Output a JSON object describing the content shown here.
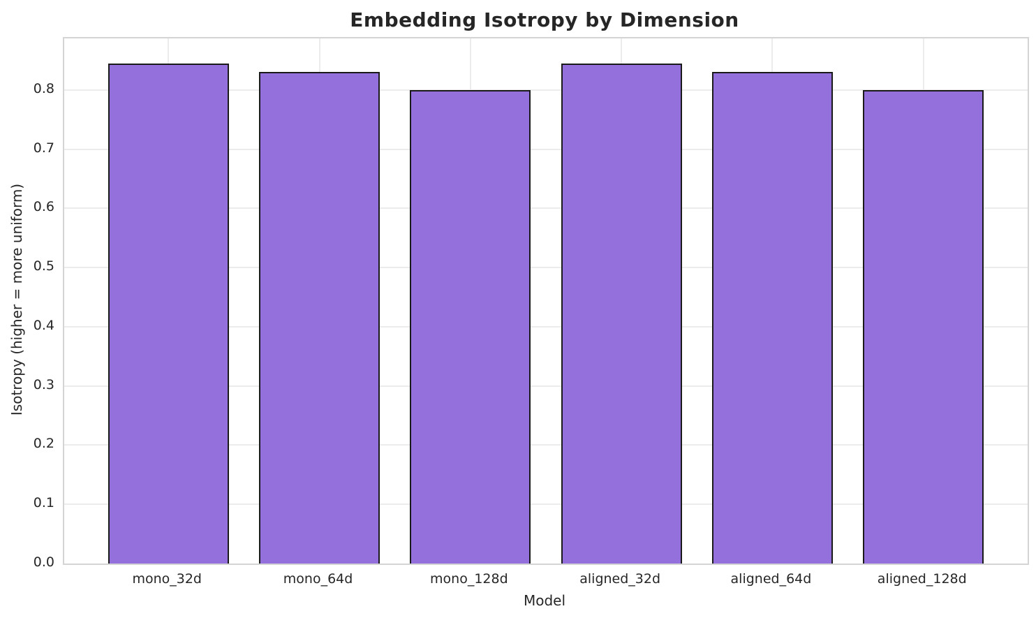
{
  "chart_data": {
    "type": "bar",
    "title": "Embedding Isotropy by Dimension",
    "xlabel": "Model",
    "ylabel": "Isotropy (higher = more uniform)",
    "categories": [
      "mono_32d",
      "mono_64d",
      "mono_128d",
      "aligned_32d",
      "aligned_64d",
      "aligned_128d"
    ],
    "values": [
      0.845,
      0.83,
      0.8,
      0.845,
      0.83,
      0.8
    ],
    "yticks": [
      0.0,
      0.1,
      0.2,
      0.3,
      0.4,
      0.5,
      0.6,
      0.7,
      0.8
    ],
    "ylim": [
      0,
      0.887
    ],
    "grid": true,
    "legend": null,
    "colors": {
      "bar_fill": "#9370DB",
      "bar_edge": "#1a1a1a",
      "grid_line": "#ececec",
      "spine": "#d4d4d4",
      "text": "#262626"
    }
  }
}
